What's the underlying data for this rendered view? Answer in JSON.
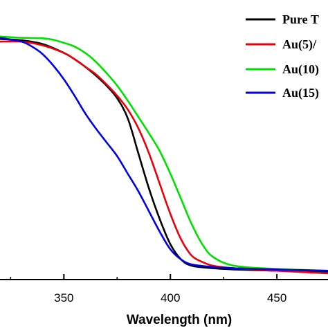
{
  "chart_data": {
    "type": "line",
    "title": "",
    "xlabel": "Wavelength (nm)",
    "ylabel": "",
    "xlim": [
      320,
      474
    ],
    "ylim": [
      0,
      1
    ],
    "xticks": [
      350,
      400,
      450
    ],
    "grid": false,
    "legend_position": "top-right",
    "series": [
      {
        "name": "Pure T",
        "color": "#000000",
        "x": [
          320,
          330,
          340,
          350,
          355,
          360,
          365,
          370,
          375,
          380,
          385,
          390,
          395,
          400,
          405,
          410,
          420,
          430,
          450,
          474
        ],
        "y": [
          0.955,
          0.95,
          0.935,
          0.9,
          0.875,
          0.845,
          0.81,
          0.77,
          0.72,
          0.64,
          0.5,
          0.36,
          0.24,
          0.14,
          0.08,
          0.055,
          0.045,
          0.04,
          0.035,
          0.032
        ]
      },
      {
        "name": "Au(5)/",
        "color": "#e8000b",
        "x": [
          320,
          330,
          340,
          350,
          355,
          360,
          365,
          370,
          375,
          380,
          385,
          390,
          395,
          400,
          405,
          410,
          415,
          420,
          430,
          450,
          474
        ],
        "y": [
          0.945,
          0.945,
          0.93,
          0.9,
          0.875,
          0.845,
          0.815,
          0.775,
          0.73,
          0.675,
          0.6,
          0.5,
          0.38,
          0.26,
          0.16,
          0.095,
          0.07,
          0.055,
          0.045,
          0.035,
          0.025
        ]
      },
      {
        "name": "Au(10)",
        "color": "#00e000",
        "x": [
          320,
          330,
          340,
          345,
          350,
          355,
          360,
          365,
          370,
          375,
          380,
          385,
          390,
          395,
          400,
          405,
          410,
          415,
          420,
          430,
          450,
          474
        ],
        "y": [
          0.965,
          0.96,
          0.958,
          0.952,
          0.94,
          0.925,
          0.9,
          0.865,
          0.82,
          0.77,
          0.71,
          0.645,
          0.58,
          0.51,
          0.42,
          0.32,
          0.22,
          0.14,
          0.09,
          0.055,
          0.042,
          0.035
        ]
      },
      {
        "name": "Au(15)",
        "color": "#0000e0",
        "x": [
          320,
          330,
          335,
          340,
          345,
          350,
          355,
          360,
          365,
          370,
          375,
          380,
          385,
          390,
          395,
          400,
          405,
          410,
          420,
          430,
          450,
          474
        ],
        "y": [
          0.96,
          0.945,
          0.925,
          0.895,
          0.85,
          0.795,
          0.73,
          0.66,
          0.6,
          0.545,
          0.49,
          0.42,
          0.35,
          0.27,
          0.19,
          0.12,
          0.08,
          0.06,
          0.05,
          0.045,
          0.04,
          0.035
        ]
      }
    ]
  }
}
